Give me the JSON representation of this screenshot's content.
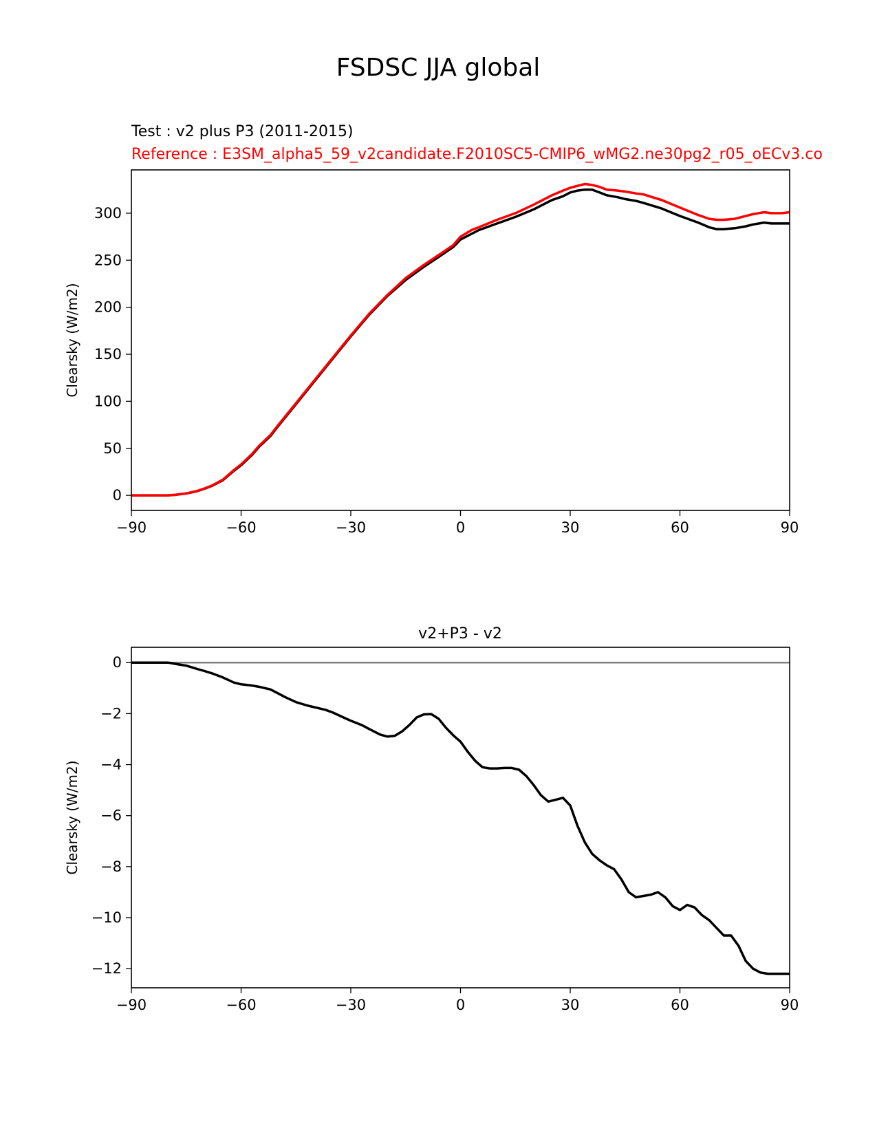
{
  "figure_title": "FSDSC JJA global",
  "chart_data": [
    {
      "type": "line",
      "test_title": "Test : v2 plus P3 (2011-2015)",
      "reference_title": "Reference : E3SM_alpha5_59_v2candidate.F2010SC5-CMIP6_wMG2.ne30pg2_r05_oECv3.co",
      "xlabel": "",
      "ylabel": "Clearsky (W/m2)",
      "xlim": [
        -90,
        90
      ],
      "ylim": [
        -16,
        346
      ],
      "xticks": [
        -90,
        -60,
        -30,
        0,
        30,
        60,
        90
      ],
      "xtick_labels": [
        "−90",
        "−60",
        "−30",
        "0",
        "30",
        "60",
        "90"
      ],
      "yticks": [
        0,
        50,
        100,
        150,
        200,
        250,
        300
      ],
      "ytick_labels": [
        "0",
        "50",
        "100",
        "150",
        "200",
        "250",
        "300"
      ],
      "series": [
        {
          "name": "Test",
          "color": "#000000",
          "x": [
            -90,
            -85,
            -80,
            -78,
            -75,
            -72,
            -70,
            -68,
            -65,
            -62,
            -60,
            -57,
            -55,
            -52,
            -50,
            -45,
            -40,
            -35,
            -30,
            -25,
            -20,
            -15,
            -10,
            -5,
            -2,
            0,
            3,
            5,
            10,
            15,
            20,
            25,
            28,
            30,
            32,
            34,
            36,
            38,
            40,
            43,
            45,
            48,
            50,
            55,
            60,
            65,
            68,
            70,
            72,
            75,
            78,
            80,
            83,
            85,
            88,
            90
          ],
          "y": [
            0,
            0,
            0,
            0.5,
            2,
            4.5,
            7,
            10,
            16,
            26,
            32,
            43,
            52,
            63,
            73,
            97,
            121,
            145,
            169,
            192,
            212,
            229,
            243,
            256,
            264,
            272,
            278,
            282,
            289,
            296,
            304,
            314,
            318,
            322,
            324,
            325,
            325,
            322,
            319,
            317,
            315,
            313,
            311,
            305,
            297,
            290,
            285,
            283,
            283,
            284,
            286,
            288,
            290,
            289,
            289,
            289
          ]
        },
        {
          "name": "Reference",
          "color": "#ff0000",
          "x": [
            -90,
            -85,
            -80,
            -78,
            -75,
            -72,
            -70,
            -68,
            -65,
            -62,
            -60,
            -57,
            -55,
            -52,
            -50,
            -45,
            -40,
            -35,
            -30,
            -25,
            -20,
            -15,
            -10,
            -5,
            -2,
            0,
            3,
            5,
            10,
            15,
            20,
            25,
            28,
            30,
            32,
            34,
            36,
            38,
            40,
            43,
            45,
            48,
            50,
            55,
            60,
            65,
            68,
            70,
            72,
            75,
            78,
            80,
            83,
            85,
            88,
            90
          ],
          "y": [
            0,
            0,
            0,
            0.5,
            2.1,
            4.7,
            7.3,
            10.4,
            16.6,
            26.8,
            32.9,
            44,
            53,
            64,
            74,
            98,
            122,
            146,
            170,
            193,
            213,
            231,
            245,
            258,
            266,
            275,
            282,
            285,
            293,
            300,
            309,
            319,
            324,
            327,
            329,
            331,
            330,
            328,
            325,
            324,
            323,
            321,
            320,
            314,
            306,
            298,
            294,
            293,
            293,
            294,
            297,
            299,
            301,
            300,
            300,
            301
          ]
        }
      ]
    },
    {
      "type": "line",
      "title": "v2+P3 - v2",
      "xlabel": "",
      "ylabel": "Clearsky (W/m2)",
      "xlim": [
        -90,
        90
      ],
      "ylim": [
        -12.75,
        0.6
      ],
      "xticks": [
        -90,
        -60,
        -30,
        0,
        30,
        60,
        90
      ],
      "xtick_labels": [
        "−90",
        "−60",
        "−30",
        "0",
        "30",
        "60",
        "90"
      ],
      "yticks": [
        0,
        -2,
        -4,
        -6,
        -8,
        -10,
        -12
      ],
      "ytick_labels": [
        "0",
        "−2",
        "−4",
        "−6",
        "−8",
        "−10",
        "−12"
      ],
      "zero_line": {
        "y": 0,
        "color": "#808080"
      },
      "series": [
        {
          "name": "v2+P3 - v2",
          "color": "#000000",
          "x": [
            -90,
            -85,
            -80,
            -78,
            -75,
            -72,
            -70,
            -68,
            -65,
            -62,
            -60,
            -57,
            -55,
            -52,
            -50,
            -48,
            -45,
            -42,
            -40,
            -37,
            -35,
            -32,
            -30,
            -27,
            -25,
            -22,
            -20,
            -18,
            -16,
            -14,
            -12,
            -10,
            -8,
            -6,
            -4,
            -2,
            0,
            2,
            4,
            6,
            8,
            10,
            12,
            14,
            16,
            18,
            20,
            22,
            24,
            26,
            28,
            30,
            32,
            34,
            36,
            38,
            40,
            42,
            44,
            46,
            48,
            50,
            52,
            54,
            56,
            58,
            60,
            62,
            64,
            66,
            68,
            70,
            72,
            74,
            76,
            78,
            80,
            82,
            84,
            86,
            88,
            89,
            90
          ],
          "y": [
            0,
            0,
            0,
            -0.05,
            -0.12,
            -0.25,
            -0.33,
            -0.42,
            -0.58,
            -0.78,
            -0.85,
            -0.9,
            -0.95,
            -1.05,
            -1.2,
            -1.35,
            -1.55,
            -1.68,
            -1.75,
            -1.85,
            -1.95,
            -2.15,
            -2.28,
            -2.45,
            -2.6,
            -2.82,
            -2.9,
            -2.87,
            -2.7,
            -2.45,
            -2.15,
            -2.03,
            -2.02,
            -2.2,
            -2.55,
            -2.85,
            -3.1,
            -3.5,
            -3.85,
            -4.1,
            -4.15,
            -4.15,
            -4.13,
            -4.13,
            -4.2,
            -4.45,
            -4.8,
            -5.2,
            -5.45,
            -5.38,
            -5.3,
            -5.6,
            -6.4,
            -7.05,
            -7.5,
            -7.75,
            -7.95,
            -8.1,
            -8.5,
            -9.0,
            -9.2,
            -9.15,
            -9.1,
            -9.0,
            -9.2,
            -9.55,
            -9.7,
            -9.5,
            -9.6,
            -9.9,
            -10.1,
            -10.4,
            -10.7,
            -10.7,
            -11.1,
            -11.7,
            -12.0,
            -12.15,
            -12.2,
            -12.2,
            -12.2,
            -12.2,
            -12.2
          ]
        }
      ]
    }
  ]
}
